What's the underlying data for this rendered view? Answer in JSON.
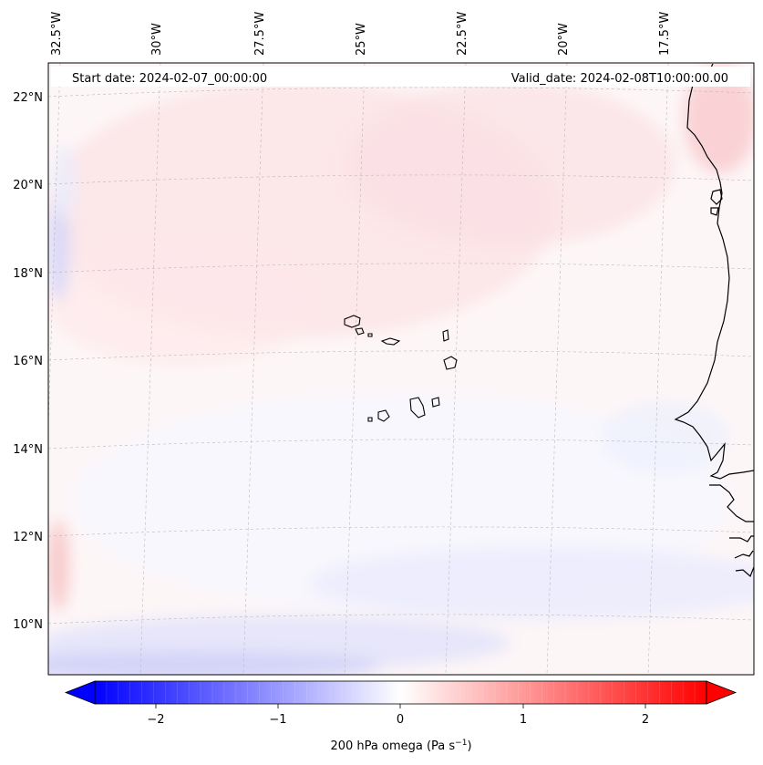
{
  "header": {
    "start_date": "Start date: 2024-02-07_00:00:00",
    "valid_date": "Valid_date: 2024-02-08T10:00:00.00"
  },
  "map": {
    "lon_labels": [
      "32.5°W",
      "30°W",
      "27.5°W",
      "25°W",
      "22.5°W",
      "20°W",
      "17.5°W"
    ],
    "lat_labels": [
      "22°N",
      "20°N",
      "18°N",
      "16°N",
      "14°N",
      "12°N",
      "10°N"
    ],
    "colors": {
      "low": "#0000ff",
      "mid": "#ffffff",
      "high": "#ff0000",
      "coast": "#000000",
      "grid": "#b0b0b0"
    }
  },
  "colorbar": {
    "ticks": [
      "−2",
      "−1",
      "0",
      "1",
      "2"
    ],
    "label_prefix": "200 hPa omega (Pa s",
    "label_sup": "−1",
    "label_suffix": ")",
    "range": [
      -2.6,
      2.6
    ]
  }
}
